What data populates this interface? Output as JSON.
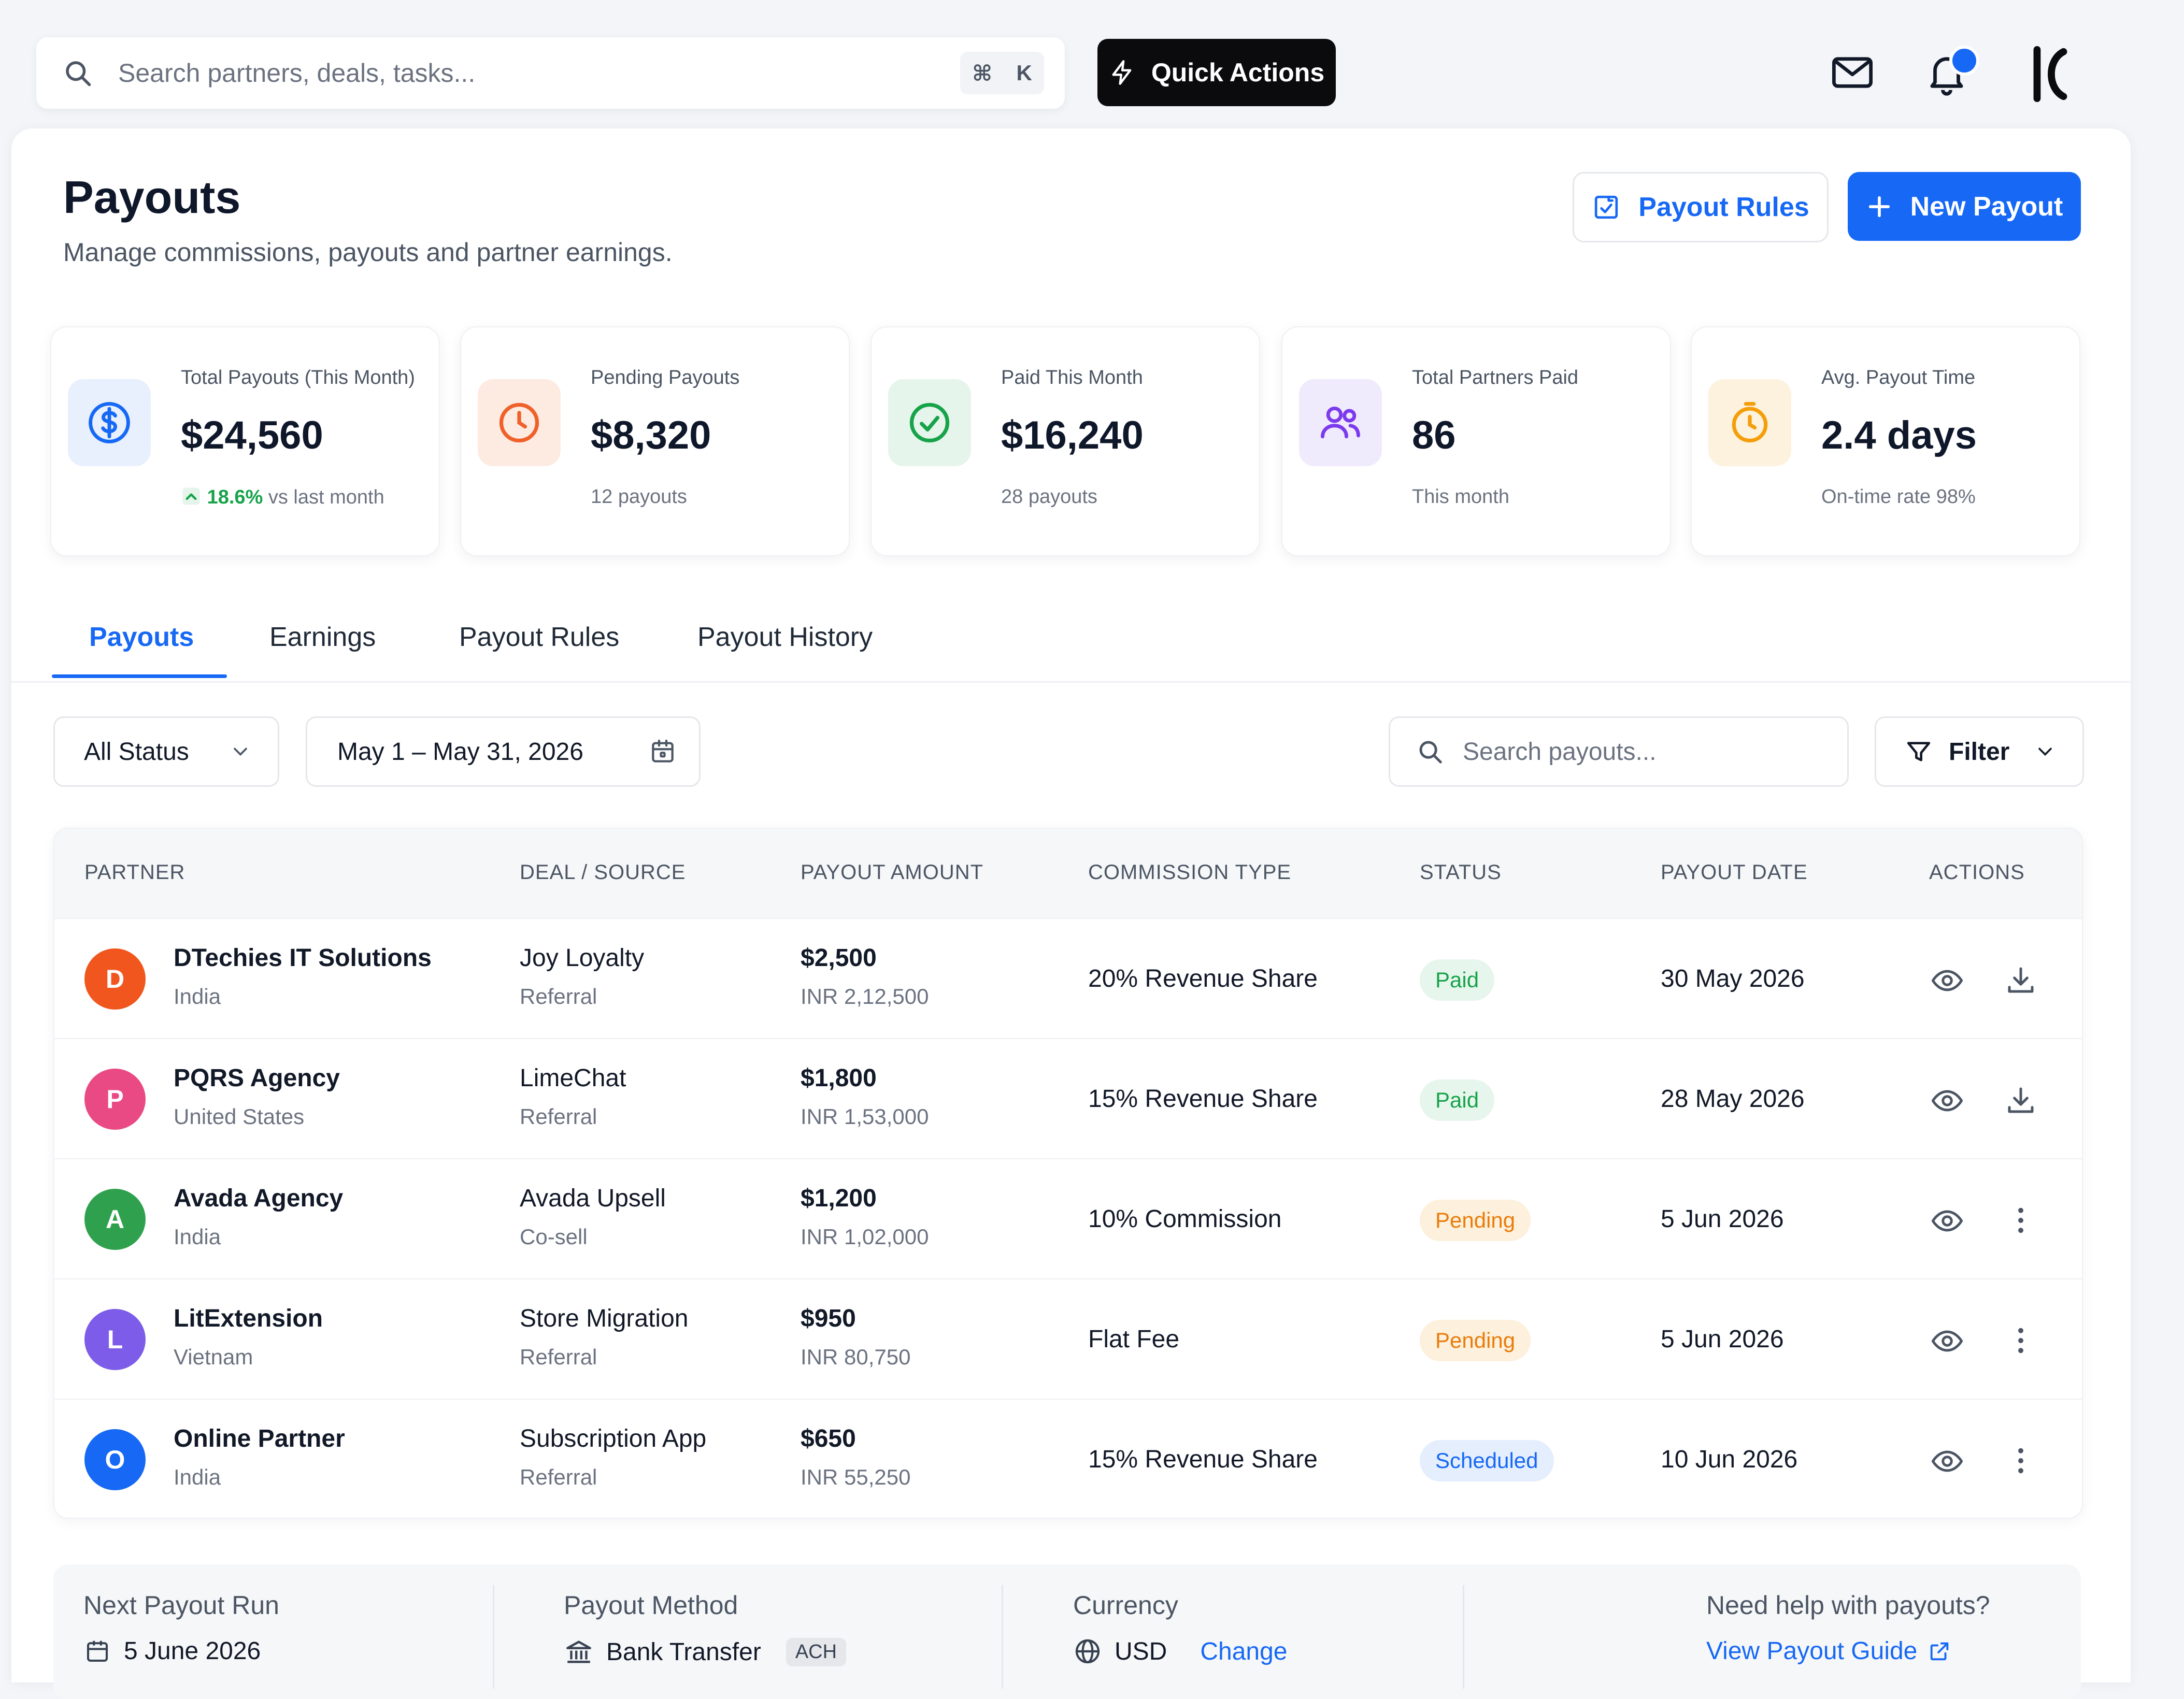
{
  "search": {
    "placeholder": "Search partners, deals, tasks...",
    "shortcut_cmd": "⌘",
    "shortcut_key": "K"
  },
  "topbar": {
    "quick_actions": "Quick Actions"
  },
  "header": {
    "title": "Payouts",
    "subtitle": "Manage commissions, payouts and partner earnings.",
    "payout_rules_button": "Payout Rules",
    "new_payout_button": "New Payout"
  },
  "stats": [
    {
      "label": "Total Payouts (This Month)",
      "value": "$24,560",
      "footer_up": "18.6%",
      "footer": "vs last month",
      "icon": "dollar-icon",
      "color": "#1668f5",
      "bg": "#e8f0fe"
    },
    {
      "label": "Pending Payouts",
      "value": "$8,320",
      "footer": "12 payouts",
      "icon": "clock-icon",
      "color": "#f0612a",
      "bg": "#fdebe2"
    },
    {
      "label": "Paid This Month",
      "value": "$16,240",
      "footer": "28 payouts",
      "icon": "check-circle-icon",
      "color": "#16a34a",
      "bg": "#e6f5eb"
    },
    {
      "label": "Total Partners Paid",
      "value": "86",
      "footer": "This month",
      "icon": "users-icon",
      "color": "#7c3aed",
      "bg": "#f0eafd"
    },
    {
      "label": "Avg. Payout Time",
      "value": "2.4 days",
      "footer": "On-time rate 98%",
      "icon": "timer-icon",
      "color": "#f59e0b",
      "bg": "#fdf2de"
    }
  ],
  "tabs": [
    "Payouts",
    "Earnings",
    "Payout Rules",
    "Payout History"
  ],
  "filters": {
    "status": "All Status",
    "date_range": "May 1 – May 31, 2026",
    "search_placeholder": "Search payouts...",
    "filter": "Filter"
  },
  "table": {
    "columns": [
      "PARTNER",
      "DEAL / SOURCE",
      "PAYOUT AMOUNT",
      "COMMISSION TYPE",
      "STATUS",
      "PAYOUT DATE",
      "ACTIONS"
    ],
    "rows": [
      {
        "initial": "D",
        "avatar_color": "#f0561d",
        "partner": "DTechies IT Solutions",
        "country": "India",
        "deal": "Joy Loyalty",
        "source": "Referral",
        "amount": "$2,500",
        "amount_inr": "INR 2,12,500",
        "commission": "20% Revenue Share",
        "status": "Paid",
        "date": "30 May 2026",
        "action": "download-icon"
      },
      {
        "initial": "P",
        "avatar_color": "#ea4a84",
        "partner": "PQRS Agency",
        "country": "United States",
        "deal": "LimeChat",
        "source": "Referral",
        "amount": "$1,800",
        "amount_inr": "INR 1,53,000",
        "commission": "15% Revenue Share",
        "status": "Paid",
        "date": "28 May 2026",
        "action": "download-icon"
      },
      {
        "initial": "A",
        "avatar_color": "#2fa14e",
        "partner": "Avada Agency",
        "country": "India",
        "deal": "Avada Upsell",
        "source": "Co-sell",
        "amount": "$1,200",
        "amount_inr": "INR 1,02,000",
        "commission": "10% Commission",
        "status": "Pending",
        "date": "5 Jun 2026",
        "action": "more-vertical-icon"
      },
      {
        "initial": "L",
        "avatar_color": "#7c5ce8",
        "partner": "LitExtension",
        "country": "Vietnam",
        "deal": "Store Migration",
        "source": "Referral",
        "amount": "$950",
        "amount_inr": "INR 80,750",
        "commission": "Flat Fee",
        "status": "Pending",
        "date": "5 Jun 2026",
        "action": "more-vertical-icon"
      },
      {
        "initial": "O",
        "avatar_color": "#1668f5",
        "partner": "Online Partner",
        "country": "India",
        "deal": "Subscription App",
        "source": "Referral",
        "amount": "$650",
        "amount_inr": "INR 55,250",
        "commission": "15% Revenue Share",
        "status": "Scheduled",
        "date": "10 Jun 2026",
        "action": "more-vertical-icon"
      }
    ]
  },
  "info": {
    "next_run_label": "Next Payout Run",
    "next_run_value": "5 June 2026",
    "method_label": "Payout Method",
    "method_value": "Bank Transfer",
    "method_badge": "ACH",
    "currency_label": "Currency",
    "currency_value": "USD",
    "currency_change": "Change",
    "help_label": "Need help with payouts?",
    "help_link": "View Payout Guide"
  }
}
